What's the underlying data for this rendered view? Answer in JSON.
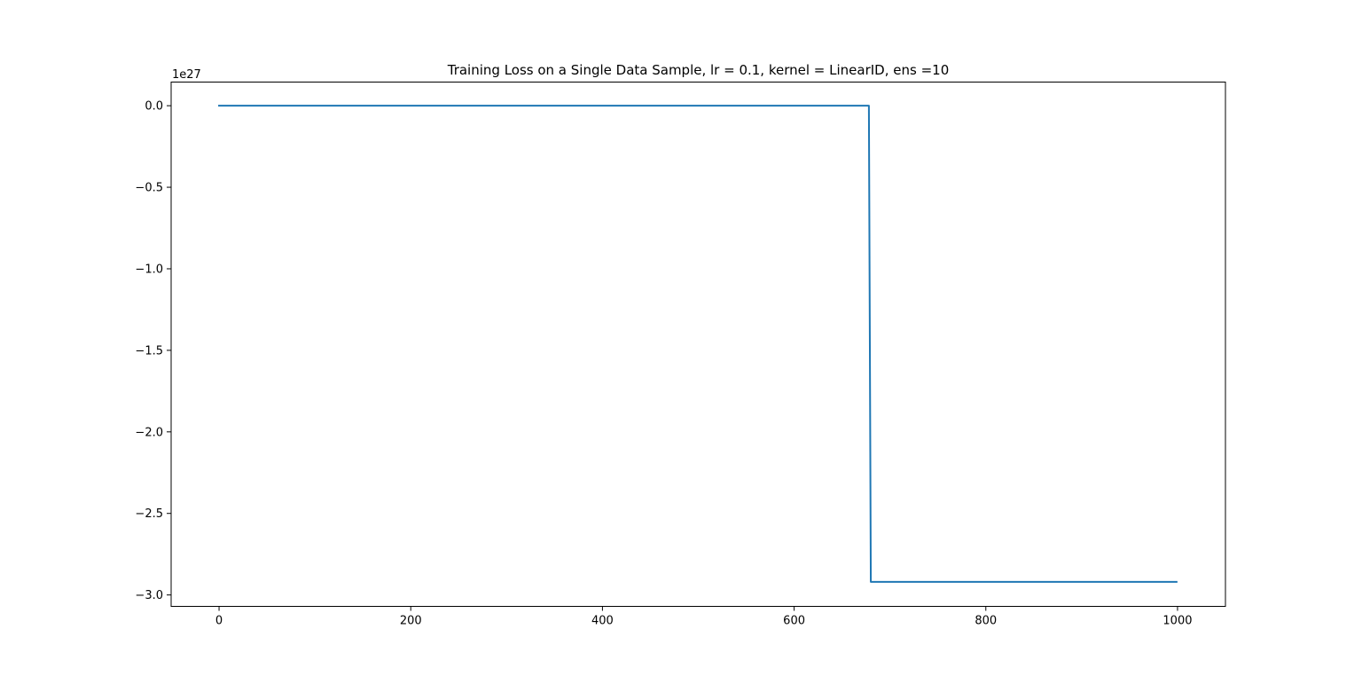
{
  "chart_data": {
    "type": "line",
    "title": "Training Loss on a Single Data Sample, lr = 0.1, kernel = LinearID, ens =10",
    "xlabel": "",
    "ylabel": "",
    "y_offset_label": "1e27",
    "y_scale_exponent": 27,
    "xlim": [
      -50,
      1050
    ],
    "ylim": [
      -3.07,
      0.145
    ],
    "x_ticks": [
      0,
      200,
      400,
      600,
      800,
      1000
    ],
    "x_tick_labels": [
      "0",
      "200",
      "400",
      "600",
      "800",
      "1000"
    ],
    "y_ticks": [
      0.0,
      -0.5,
      -1.0,
      -1.5,
      -2.0,
      -2.5,
      -3.0
    ],
    "y_tick_labels": [
      "0.0",
      "−0.5",
      "−1.0",
      "−1.5",
      "−2.0",
      "−2.5",
      "−3.0"
    ],
    "grid": false,
    "legend": "none",
    "series": [
      {
        "color": "#1f77b4",
        "x": [
          0,
          678,
          680,
          999
        ],
        "y": [
          0.0,
          0.0,
          -2.92,
          -2.92
        ]
      }
    ]
  }
}
